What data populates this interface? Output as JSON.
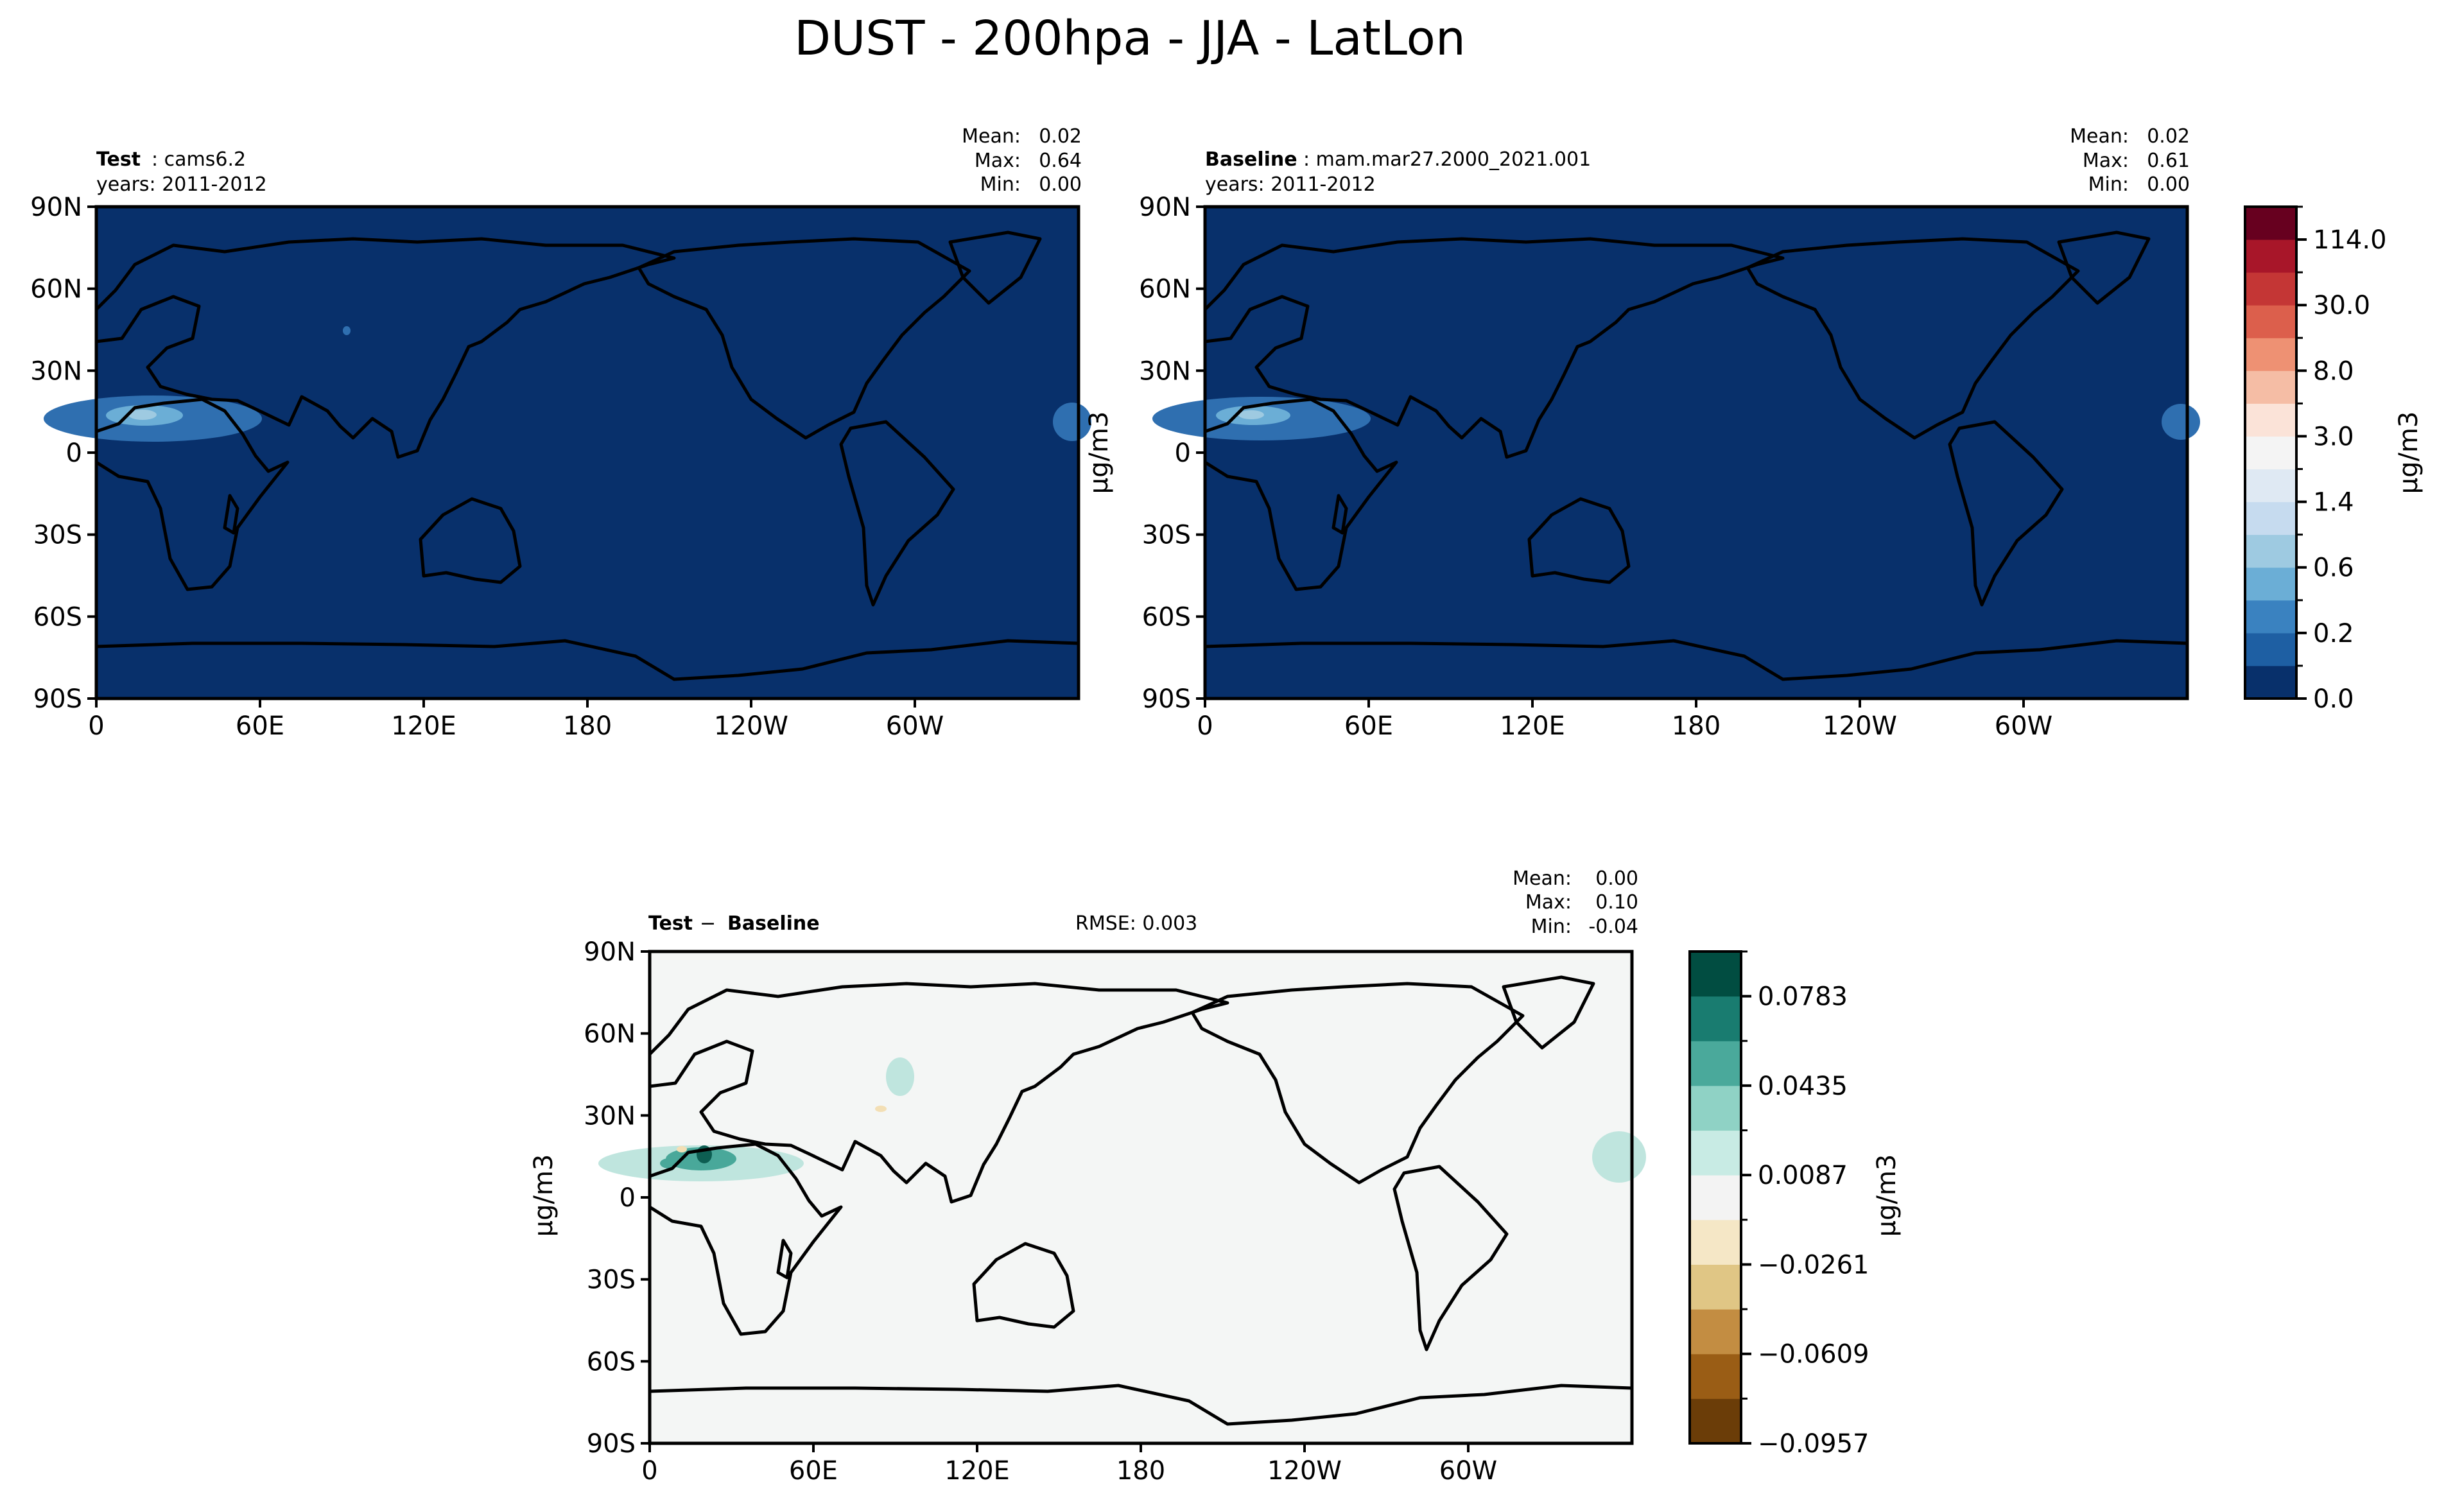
{
  "figure_title": "DUST - 200hpa - JJA - LatLon",
  "colors": {
    "ocean_blue": "#08306b",
    "dust_mid": "#2f6fb0",
    "dust_light": "#6baed6",
    "dust_pale": "#9ecae1",
    "diff_bg": "#f4f6f5",
    "diff_teal": "#bfe5de",
    "diff_teal_mid": "#49a89a",
    "diff_teal_dark": "#0d5e52",
    "diff_tan": "#f3dfb5"
  },
  "chart_data": [
    {
      "type": "heatmap",
      "panel": "test",
      "title_bold": "Test",
      "title_rest": ": cams6.2",
      "subtitle": "years: 2011-2012",
      "stats": {
        "mean_label": "Mean:",
        "mean": "0.02",
        "max_label": "Max:",
        "max": "0.64",
        "min_label": "Min:",
        "min": "0.00"
      },
      "x_ticks": [
        "0",
        "60E",
        "120E",
        "180",
        "120W",
        "60W"
      ],
      "y_ticks": [
        "90N",
        "60N",
        "30N",
        "0",
        "30S",
        "60S",
        "90S"
      ],
      "xlim": [
        0,
        360
      ],
      "ylim": [
        -90,
        90
      ],
      "ylabel": "μg/m3"
    },
    {
      "type": "heatmap",
      "panel": "baseline",
      "title_bold": "Baseline",
      "title_rest": ": mam.mar27.2000_2021.001",
      "subtitle": "years: 2011-2012",
      "stats": {
        "mean_label": "Mean:",
        "mean": "0.02",
        "max_label": "Max:",
        "max": "0.61",
        "min_label": "Min:",
        "min": "0.00"
      },
      "x_ticks": [
        "0",
        "60E",
        "120E",
        "180",
        "120W",
        "60W"
      ],
      "y_ticks": [
        "90N",
        "60N",
        "30N",
        "0",
        "30S",
        "60S",
        "90S"
      ],
      "xlim": [
        0,
        360
      ],
      "ylim": [
        -90,
        90
      ],
      "colorbar": {
        "label": "μg/m3",
        "tick_labels": [
          "114.0",
          "30.0",
          "8.0",
          "3.0",
          "1.4",
          "0.6",
          "0.2",
          "0.0"
        ],
        "colors": [
          "#08306b",
          "#1e5fa3",
          "#3a82c0",
          "#6baed6",
          "#9ecae1",
          "#c6dbef",
          "#dfe9f3",
          "#f4f4f4",
          "#fbe3d8",
          "#f5bda5",
          "#ee9173",
          "#dc5f4c",
          "#c43635",
          "#a81629",
          "#67001f"
        ]
      }
    },
    {
      "type": "heatmap",
      "panel": "difference",
      "title_bold": "Test",
      "title_rest": " − ",
      "title_bold2": "Baseline",
      "rmse": "RMSE: 0.003",
      "stats": {
        "mean_label": "Mean:",
        "mean": "0.00",
        "max_label": "Max:",
        "max": "0.10",
        "min_label": "Min:",
        "min": "-0.04"
      },
      "x_ticks": [
        "0",
        "60E",
        "120E",
        "180",
        "120W",
        "60W"
      ],
      "y_ticks": [
        "90N",
        "60N",
        "30N",
        "0",
        "30S",
        "60S",
        "90S"
      ],
      "xlim": [
        0,
        360
      ],
      "ylim": [
        -90,
        90
      ],
      "ylabel": "μg/m3",
      "colorbar": {
        "label": "μg/m3",
        "tick_labels": [
          "0.0783",
          "0.0435",
          "0.0087",
          "−0.0261",
          "−0.0609",
          "−0.0957"
        ],
        "colors": [
          "#6b3d08",
          "#9a5d15",
          "#c38d42",
          "#e0c685",
          "#f5e7c6",
          "#f3f3f3",
          "#c8ebe4",
          "#8fd2c5",
          "#4aa99b",
          "#197c70",
          "#014d41"
        ]
      }
    }
  ]
}
